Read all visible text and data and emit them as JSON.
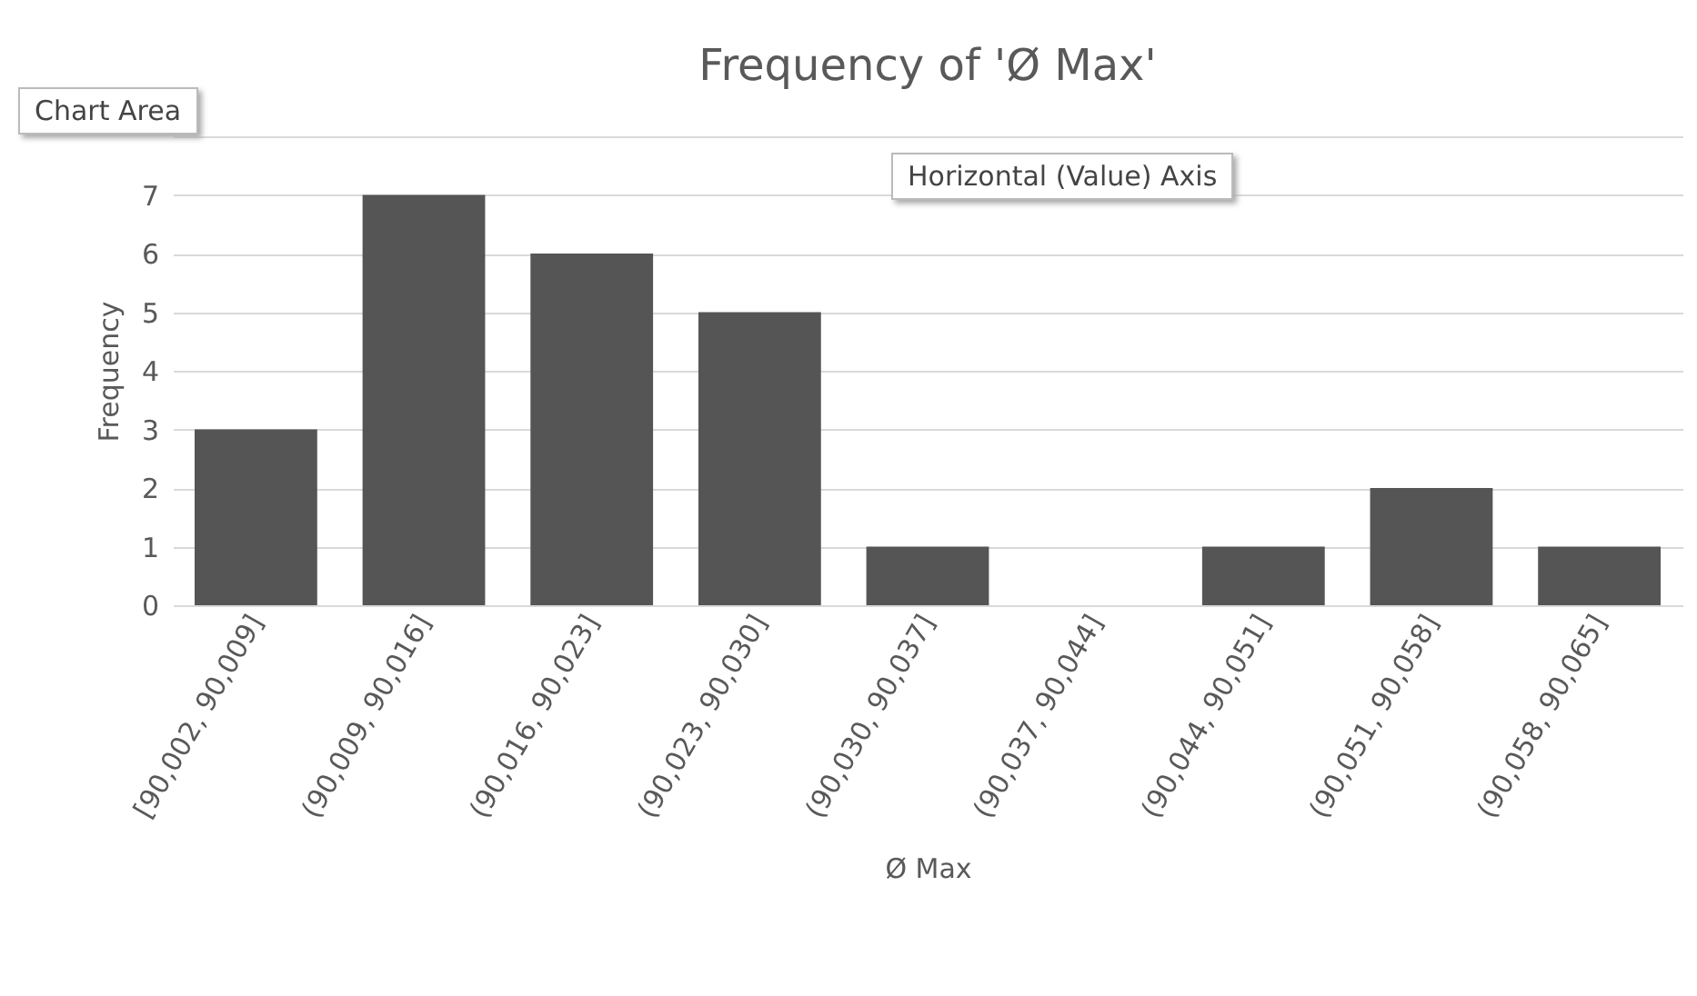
{
  "chart_data": {
    "type": "bar",
    "title": "Frequency of 'Ø Max'",
    "xlabel": "Ø Max",
    "ylabel": "Frequency",
    "categories": [
      "[90,002, 90,009]",
      "(90,009, 90,016]",
      "(90,016, 90,023]",
      "(90,023, 90,030]",
      "(90,030, 90,037]",
      "(90,037, 90,044]",
      "(90,044, 90,051]",
      "(90,051, 90,058]",
      "(90,058, 90,065]"
    ],
    "values": [
      3,
      7,
      6,
      5,
      1,
      0,
      1,
      2,
      1
    ],
    "color": "#555555",
    "ylim": [
      0,
      8
    ],
    "yticks": [
      0,
      1,
      2,
      3,
      4,
      5,
      6,
      7,
      {
        "value": 8,
        "label": null
      }
    ],
    "grid": "y",
    "annotations": [
      "Chart Area",
      "Horizontal (Value) Axis"
    ]
  }
}
